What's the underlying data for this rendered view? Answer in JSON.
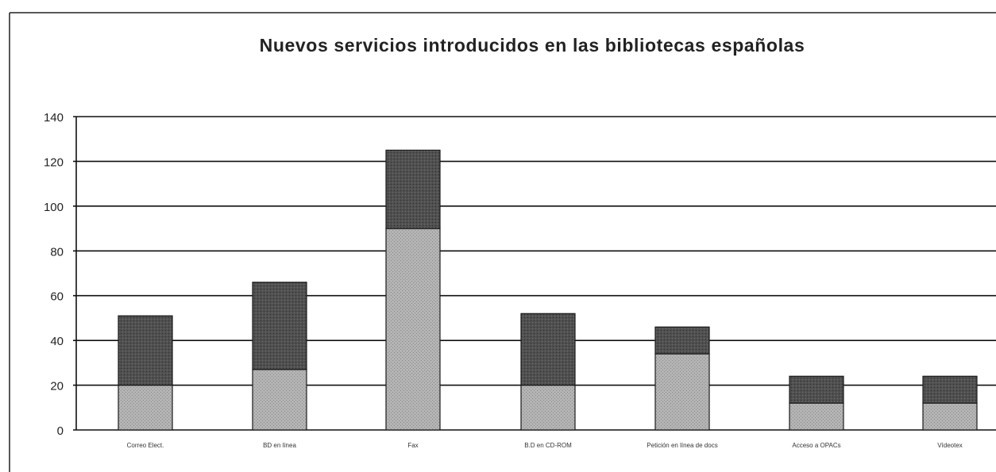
{
  "chart_data": {
    "type": "bar",
    "stacked": true,
    "title": "Nuevos servicios introducidos en las bibliotecas españolas",
    "xlabel": "",
    "ylabel": "",
    "ylim": [
      0,
      140
    ],
    "yticks": [
      0,
      20,
      40,
      60,
      80,
      100,
      120,
      140
    ],
    "grid": true,
    "legend": "none",
    "categories": [
      "Correo Elect.",
      "BD en línea",
      "Fax",
      "B.D en CD-ROM",
      "Petición en línea de docs",
      "Acceso a OPACs",
      "Vídeotex"
    ],
    "series": [
      {
        "values": [
          20,
          27,
          90,
          20,
          34,
          12,
          12
        ]
      },
      {
        "values": [
          31,
          39,
          35,
          32,
          12,
          12,
          12
        ]
      }
    ],
    "colors": {
      "lower": "#a8a8a8",
      "upper": "#4a4a4a",
      "grid": "#111111",
      "frame": "#222222"
    }
  }
}
